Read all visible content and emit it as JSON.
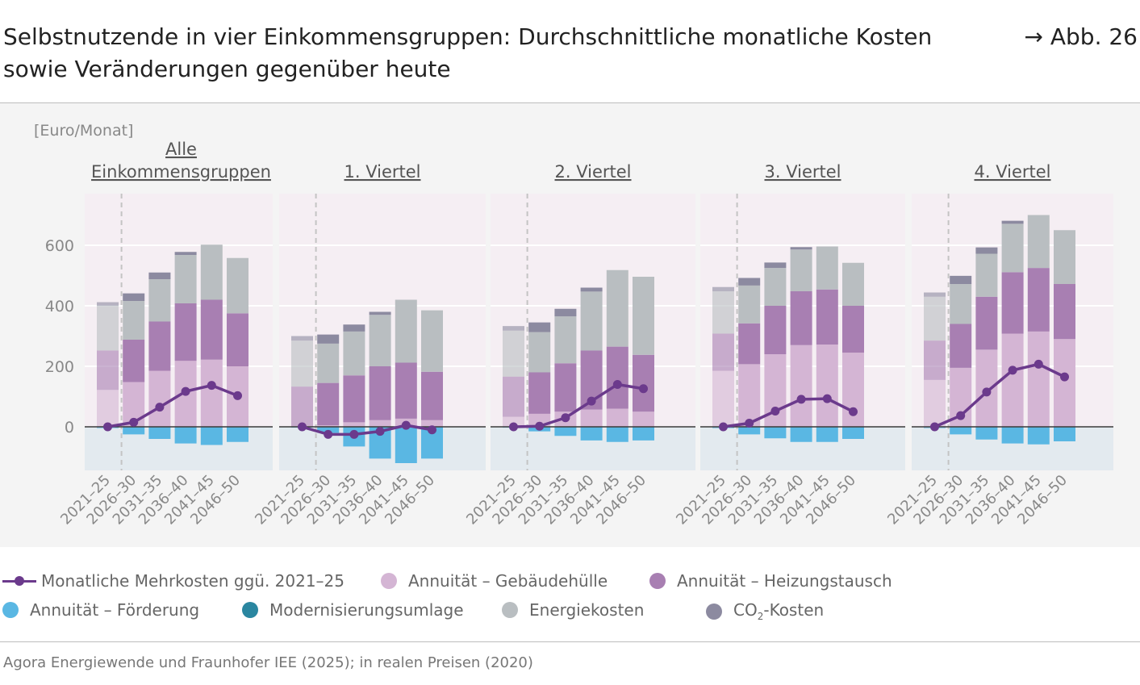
{
  "header": {
    "title": "Selbstnutzende in vier Einkommensgruppen: Durchschnittliche monatliche Kosten sowie Veränderungen gegenüber heute",
    "figure_ref": "→ Abb. 26"
  },
  "source": "Agora Energiewende und Fraunhofer IEE (2025); in realen Preisen (2020)",
  "legend": {
    "mehrkosten": "Monatliche Mehrkosten ggü. 2021–25",
    "gebaeudehuelle": "Annuität – Gebäudehülle",
    "heizungstausch": "Annuität – Heizungstausch",
    "foerderung": "Annuität – Förderung",
    "modernisierung": "Modernisierungsumlage",
    "energie": "Energiekosten",
    "co2_prefix": "CO",
    "co2_sub": "2",
    "co2_suffix": "-Kosten"
  },
  "colors": {
    "gebaeudehuelle": "#d4b5d4",
    "heizungstausch": "#a87fb2",
    "foerderung": "#5ab7e3",
    "modernisierung": "#2a86a0",
    "energie": "#b9bec1",
    "co2": "#8c8aa0",
    "mehrkosten": "#6b3a8c",
    "bg_positive": "#f5eef3",
    "bg_negative": "#e3eaef"
  },
  "chart_data": {
    "type": "bar",
    "stacked": true,
    "ylabel": "[Euro/Monat]",
    "ylim": [
      -140,
      760
    ],
    "yticks": [
      0,
      200,
      400,
      600
    ],
    "categories": [
      "2021–25",
      "2026–30",
      "2031–35",
      "2036–40",
      "2041–45",
      "2046–50"
    ],
    "panels": [
      {
        "title": "Alle Einkommensgruppen",
        "title_lines": [
          "Alle",
          "Einkommensgruppen"
        ],
        "gebaeudehuelle": [
          122,
          148,
          185,
          218,
          222,
          200
        ],
        "heizungstausch": [
          130,
          140,
          163,
          190,
          198,
          175
        ],
        "foerderung": [
          -5,
          -25,
          -40,
          -55,
          -60,
          -50
        ],
        "energie": [
          148,
          128,
          140,
          160,
          182,
          183
        ],
        "co2": [
          12,
          25,
          22,
          10,
          0,
          0
        ],
        "mehrkosten": [
          0,
          15,
          65,
          117,
          137,
          103
        ]
      },
      {
        "title": "1. Viertel",
        "title_lines": [
          "1. Viertel"
        ],
        "gebaeudehuelle": [
          0,
          5,
          15,
          22,
          27,
          22
        ],
        "heizungstausch": [
          133,
          140,
          155,
          178,
          185,
          160
        ],
        "foerderung": [
          -3,
          -20,
          -65,
          -105,
          -120,
          -105
        ],
        "energie": [
          152,
          130,
          145,
          170,
          208,
          203
        ],
        "co2": [
          15,
          30,
          23,
          10,
          0,
          0
        ],
        "mehrkosten": [
          0,
          -25,
          -25,
          -15,
          5,
          -10
        ]
      },
      {
        "title": "2. Viertel",
        "title_lines": [
          "2. Viertel"
        ],
        "gebaeudehuelle": [
          33,
          43,
          50,
          57,
          60,
          50
        ],
        "heizungstausch": [
          133,
          137,
          160,
          195,
          205,
          188
        ],
        "foerderung": [
          -3,
          -15,
          -30,
          -45,
          -50,
          -45
        ],
        "energie": [
          152,
          133,
          155,
          195,
          253,
          258
        ],
        "co2": [
          15,
          32,
          25,
          13,
          0,
          0
        ],
        "mehrkosten": [
          0,
          2,
          30,
          85,
          140,
          126
        ]
      },
      {
        "title": "3. Viertel",
        "title_lines": [
          "3. Viertel"
        ],
        "gebaeudehuelle": [
          185,
          207,
          240,
          270,
          272,
          245
        ],
        "heizungstausch": [
          123,
          135,
          160,
          178,
          182,
          155
        ],
        "foerderung": [
          -5,
          -25,
          -38,
          -50,
          -50,
          -40
        ],
        "energie": [
          140,
          125,
          125,
          138,
          142,
          142
        ],
        "co2": [
          14,
          25,
          18,
          8,
          0,
          0
        ],
        "mehrkosten": [
          0,
          12,
          52,
          91,
          93,
          50
        ]
      },
      {
        "title": "4. Viertel",
        "title_lines": [
          "4. Viertel"
        ],
        "gebaeudehuelle": [
          155,
          195,
          255,
          308,
          315,
          290
        ],
        "heizungstausch": [
          130,
          145,
          175,
          203,
          210,
          182
        ],
        "foerderung": [
          -5,
          -25,
          -42,
          -55,
          -58,
          -48
        ],
        "energie": [
          145,
          132,
          142,
          160,
          175,
          178
        ],
        "co2": [
          14,
          27,
          21,
          10,
          0,
          0
        ],
        "mehrkosten": [
          0,
          37,
          115,
          187,
          207,
          165
        ]
      }
    ]
  }
}
